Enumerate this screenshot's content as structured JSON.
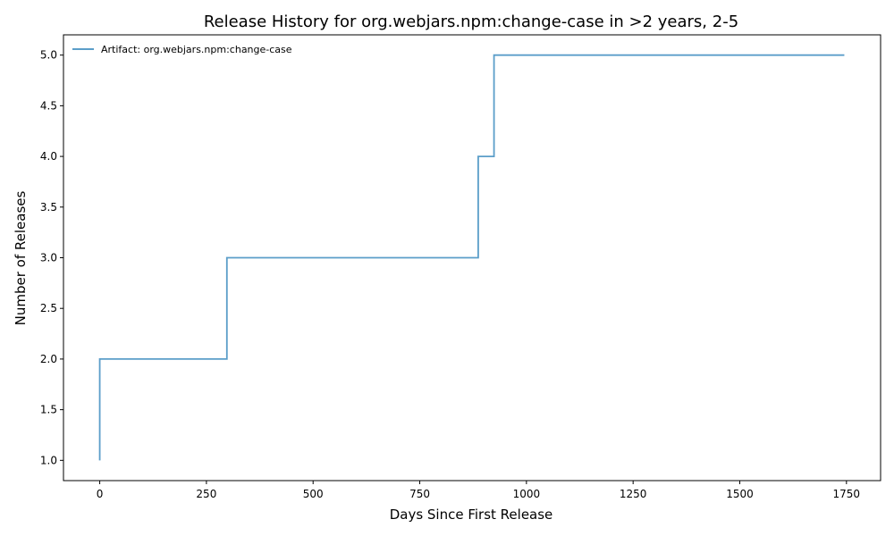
{
  "chart_data": {
    "type": "line",
    "step": true,
    "title": "Release History for org.webjars.npm:change-case in >2 years, 2-5",
    "xlabel": "Days Since First Release",
    "ylabel": "Number of Releases",
    "xlim": [
      -85,
      1830
    ],
    "ylim": [
      0.8,
      5.2
    ],
    "xticks": [
      0,
      250,
      500,
      750,
      1000,
      1250,
      1500,
      1750
    ],
    "yticks": [
      1.0,
      1.5,
      2.0,
      2.5,
      3.0,
      3.5,
      4.0,
      4.5,
      5.0
    ],
    "xtick_labels": [
      "0",
      "250",
      "500",
      "750",
      "1000",
      "1250",
      "1500",
      "1750"
    ],
    "ytick_labels": [
      "1.0",
      "1.5",
      "2.0",
      "2.5",
      "3.0",
      "3.5",
      "4.0",
      "4.5",
      "5.0"
    ],
    "grid": false,
    "legend_position": "top-left",
    "series": [
      {
        "name": "Artifact: org.webjars.npm:change-case",
        "color": "#5b9ec9",
        "x": [
          0,
          0,
          298,
          887,
          924,
          1745
        ],
        "y": [
          1,
          2,
          3,
          4,
          5,
          5
        ]
      }
    ]
  }
}
